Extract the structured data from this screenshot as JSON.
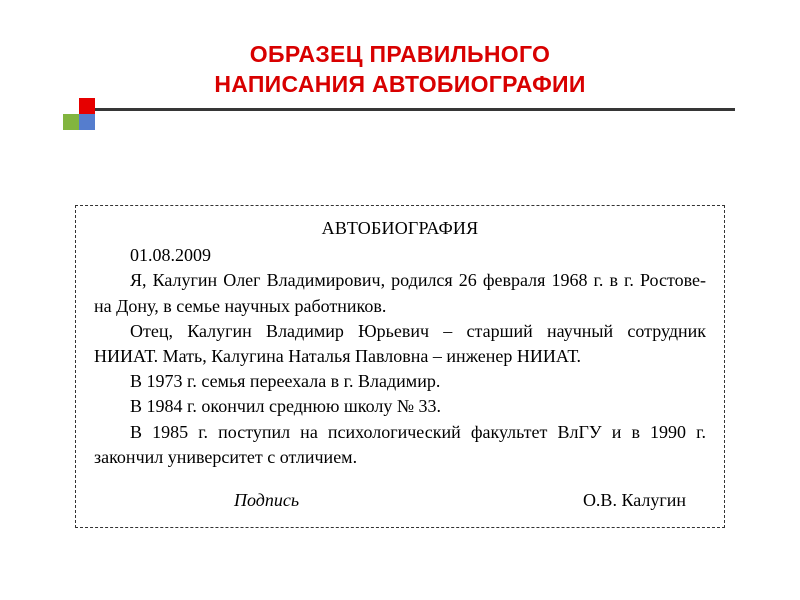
{
  "heading": {
    "line1": "ОБРАЗЕЦ ПРАВИЛЬНОГО",
    "line2": "НАПИСАНИЯ АВТОБИОГРАФИИ",
    "color": "#d80000",
    "fontsize": 23,
    "rule_color": "#363636"
  },
  "squares": {
    "red": "#e60000",
    "green": "#82b53f",
    "blue": "#2b5cc2"
  },
  "doc": {
    "title": "АВТОБИОГРАФИЯ",
    "date": "01.08.2009",
    "p1": "Я, Калугин Олег Владимирович, родился 26 февраля 1968 г. в г. Ростове-на Дону, в семье научных работников.",
    "p2": "Отец, Калугин Владимир Юрьевич – старший научный сотрудник НИИАТ. Мать, Калугина Наталья Павловна – инженер НИИАТ.",
    "p3": "В 1973 г. семья переехала в г. Владимир.",
    "p4": "В 1984 г. окончил среднюю школу № 33.",
    "p5": "В 1985 г. поступил на психологический факультет ВлГУ и в 1990 г. закончил университет с отличием.",
    "signature_label": "Подпись",
    "signature_name": "О.В. Калугин",
    "border_style": "dashed",
    "font_family": "Times New Roman",
    "fontsize": 18
  }
}
